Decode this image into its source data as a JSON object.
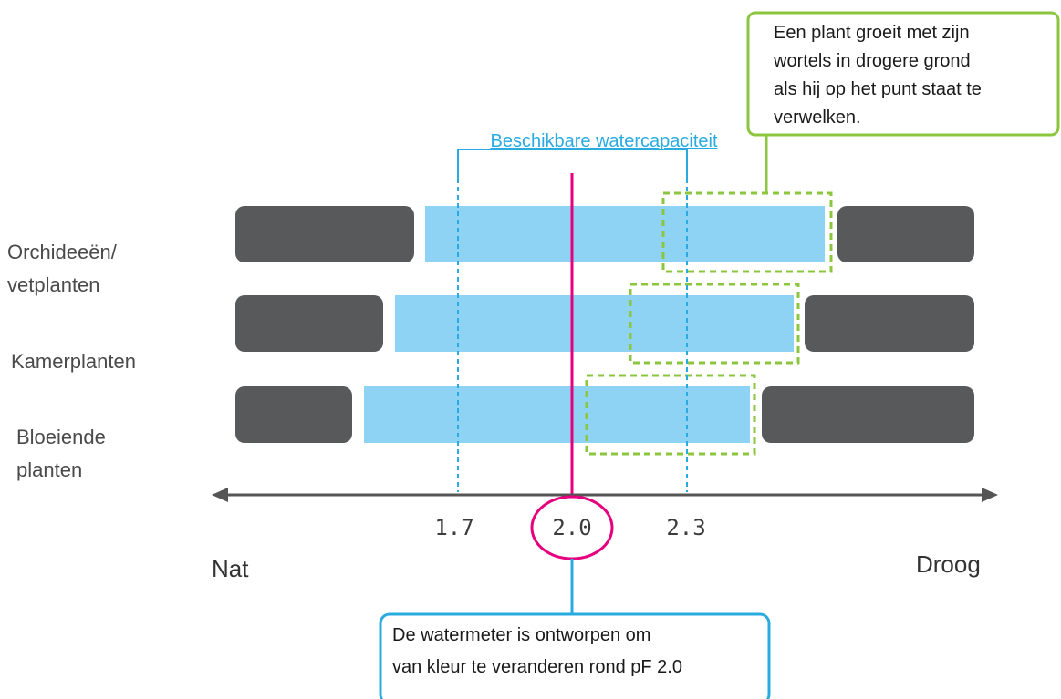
{
  "range_label": "Beschikbare watercapaciteit",
  "green_callout": {
    "lines": [
      "Een plant groeit met zijn",
      "wortels in drogere grond",
      "als hij op het punt staat te",
      "verwelken."
    ]
  },
  "blue_callout": {
    "lines": [
      "De watermeter is ontworpen om",
      "van kleur te veranderen rond pF 2.0"
    ]
  },
  "categories": [
    {
      "lines": [
        "Orchideeën/",
        "vetplanten"
      ]
    },
    {
      "lines": [
        "Kamerplanten"
      ]
    },
    {
      "lines": [
        "Bloeiende",
        "planten"
      ]
    }
  ],
  "axis": {
    "left_label": "Nat",
    "right_label": "Droog",
    "ticks": [
      "1.7",
      "2.0",
      "2.3"
    ]
  },
  "colors": {
    "wet_dry_bar": "#58595b",
    "available_band": "#8fd3f4",
    "green_accent": "#8cc63f",
    "blue_accent": "#29abe2",
    "meter_line": "#e6007e"
  }
}
